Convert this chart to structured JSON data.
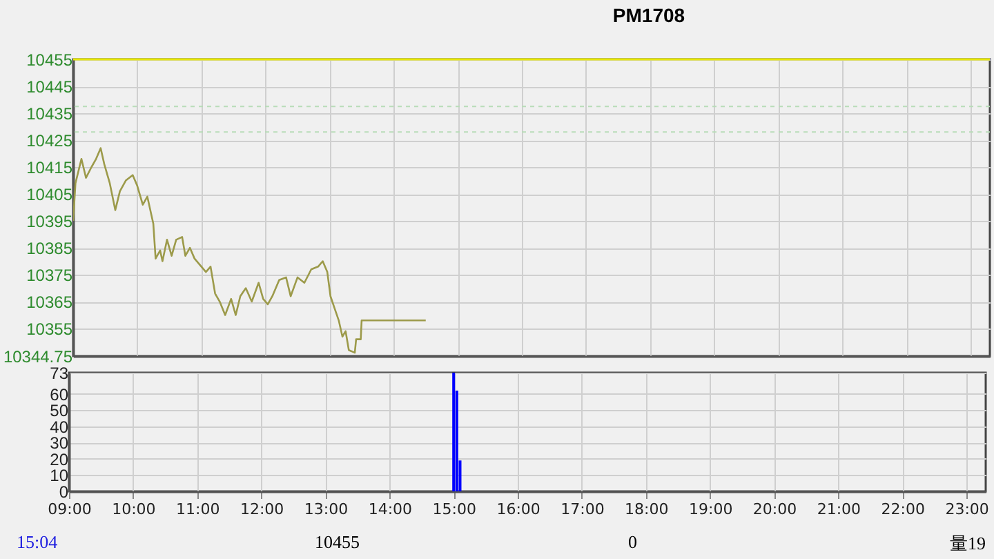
{
  "chart_data": [
    {
      "type": "line",
      "title": "PM1708",
      "tick_labels": "y",
      "grid": true,
      "x": [
        9.0,
        9.036,
        9.129,
        9.2,
        9.286,
        9.357,
        9.429,
        9.486,
        9.571,
        9.657,
        9.729,
        9.821,
        9.929,
        10.0,
        10.086,
        10.157,
        10.25,
        10.286,
        10.357,
        10.393,
        10.464,
        10.536,
        10.607,
        10.7,
        10.75,
        10.821,
        10.893,
        11.0,
        11.071,
        11.143,
        11.214,
        11.286,
        11.371,
        11.464,
        11.536,
        11.607,
        11.693,
        11.786,
        11.893,
        11.964,
        12.036,
        12.107,
        12.214,
        12.321,
        12.393,
        12.5,
        12.607,
        12.714,
        12.821,
        12.893,
        12.964,
        13.014,
        13.071,
        13.143,
        13.2,
        13.25,
        13.3,
        13.393,
        13.414,
        13.486,
        13.5,
        14.5
      ],
      "series": [
        {
          "color": "#9c9a4a",
          "values": [
            10395,
            10409,
            10418,
            10411,
            10415,
            10418,
            10422,
            10416,
            10409,
            10399,
            10406,
            10410,
            10412,
            10408,
            10401,
            10404,
            10394,
            10381,
            10384,
            10380,
            10388,
            10382,
            10388,
            10389,
            10382,
            10385,
            10381,
            10378,
            10376,
            10378,
            10368,
            10365,
            10360,
            10366,
            10360,
            10367,
            10370,
            10365,
            10372,
            10366,
            10364,
            10367,
            10373,
            10374,
            10367,
            10374,
            10372,
            10377,
            10378,
            10380,
            10376,
            10367,
            10363,
            10358,
            10352,
            10354,
            10347,
            10346,
            10351,
            10351,
            10358,
            10358
          ]
        }
      ],
      "xlim": [
        9,
        23.3
      ],
      "xticks": [
        {
          "value": 9,
          "label": null
        },
        {
          "value": 10,
          "label": null
        },
        {
          "value": 11,
          "label": null
        },
        {
          "value": 12,
          "label": null
        },
        {
          "value": 13,
          "label": null
        },
        {
          "value": 14,
          "label": null
        },
        {
          "value": 15,
          "label": null
        },
        {
          "value": 16,
          "label": null
        },
        {
          "value": 17,
          "label": null
        },
        {
          "value": 18,
          "label": null
        },
        {
          "value": 19,
          "label": null
        },
        {
          "value": 20,
          "label": null
        },
        {
          "value": 21,
          "label": null
        },
        {
          "value": 22,
          "label": null
        },
        {
          "value": 23,
          "label": null
        }
      ],
      "ylim": [
        10344.75,
        10455
      ],
      "yticks": [
        10344.75,
        10355,
        10365,
        10375,
        10385,
        10395,
        10405,
        10415,
        10425,
        10435,
        10445,
        10455
      ],
      "ref_lines": [
        {
          "axis": "y",
          "value": 10455,
          "color": "#e8e800",
          "line_style": "solid"
        },
        {
          "axis": "y",
          "value": 10437.5,
          "color": "#b8dcb8",
          "line_style": "dashed"
        },
        {
          "axis": "y",
          "value": 10428,
          "color": "#b8dcb8",
          "line_style": "dashed"
        }
      ]
    },
    {
      "type": "bar",
      "grid": true,
      "x": [
        15.0,
        15.05,
        15.1
      ],
      "series": [
        {
          "color": "#0000ff",
          "values": [
            73,
            62,
            19
          ]
        }
      ],
      "xlim": [
        9,
        23.3
      ],
      "xticks": [
        {
          "value": 9,
          "label": "09:00"
        },
        {
          "value": 10,
          "label": "10:00"
        },
        {
          "value": 11,
          "label": "11:00"
        },
        {
          "value": 12,
          "label": "12:00"
        },
        {
          "value": 13,
          "label": "13:00"
        },
        {
          "value": 14,
          "label": "14:00"
        },
        {
          "value": 15,
          "label": "15:00"
        },
        {
          "value": 16,
          "label": "16:00"
        },
        {
          "value": 17,
          "label": "17:00"
        },
        {
          "value": 18,
          "label": "18:00"
        },
        {
          "value": 19,
          "label": "19:00"
        },
        {
          "value": 20,
          "label": "20:00"
        },
        {
          "value": 21,
          "label": "21:00"
        },
        {
          "value": 22,
          "label": "22:00"
        },
        {
          "value": 23,
          "label": "23:00"
        }
      ],
      "ylim": [
        0,
        73
      ],
      "yticks": [
        0,
        10,
        20,
        30,
        40,
        50,
        60,
        73
      ],
      "annotations": [
        "15:04",
        "10455",
        "0",
        "量19"
      ]
    }
  ]
}
